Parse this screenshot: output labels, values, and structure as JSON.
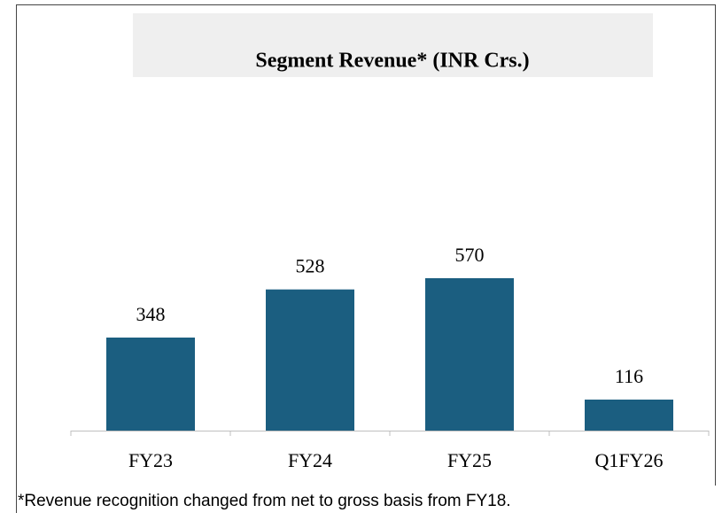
{
  "chart_data": {
    "type": "bar",
    "title": "Segment Revenue* (INR Crs.)",
    "categories": [
      "FY23",
      "FY24",
      "FY25",
      "Q1FY26"
    ],
    "values": [
      348,
      528,
      570,
      116
    ],
    "color": "#1b5e80",
    "footnote": "*Revenue recognition changed from net to gross basis from FY18."
  }
}
